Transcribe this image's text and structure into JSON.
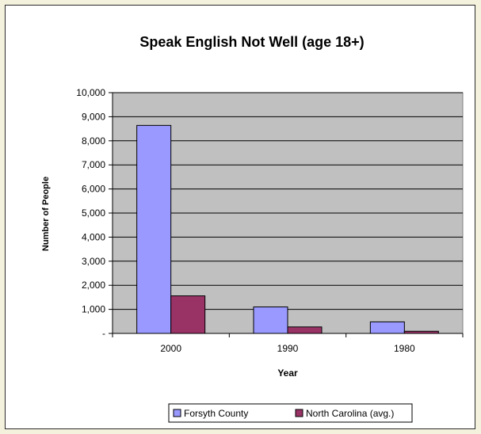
{
  "chart_data": {
    "type": "bar",
    "title": "Speak English Not Well (age 18+)",
    "xlabel": "Year",
    "ylabel": "Number of People",
    "categories": [
      "2000",
      "1990",
      "1980"
    ],
    "series": [
      {
        "name": "Forsyth County",
        "values": [
          8640,
          1100,
          480
        ],
        "color": "#9999ff"
      },
      {
        "name": "North Carolina (avg.)",
        "values": [
          1560,
          270,
          90
        ],
        "color": "#993366"
      }
    ],
    "ylim": [
      0,
      10000
    ],
    "y_ticks": [
      0,
      1000,
      2000,
      3000,
      4000,
      5000,
      6000,
      7000,
      8000,
      9000,
      10000
    ],
    "y_tick_labels": [
      "-",
      "1,000",
      "2,000",
      "3,000",
      "4,000",
      "5,000",
      "6,000",
      "7,000",
      "8,000",
      "9,000",
      "10,000"
    ],
    "grid": true,
    "plot_background": "#c0c0c0",
    "legend_position": "bottom"
  }
}
